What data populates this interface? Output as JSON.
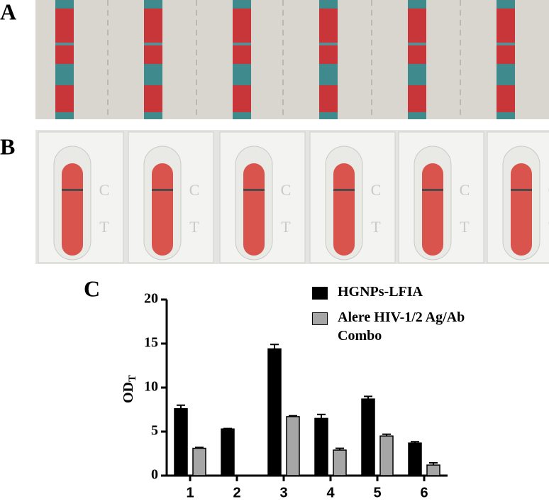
{
  "panel_labels": [
    "A",
    "B"
  ],
  "cassette_labels": [
    "C",
    "T"
  ],
  "chart_data": {
    "type": "bar",
    "panel_label": "C",
    "y_label": "OD",
    "y_label_sub": "T",
    "categories": [
      "1",
      "2",
      "3",
      "4",
      "5",
      "6"
    ],
    "series": [
      {
        "name": "HGNPs-LFIA",
        "color": "#000000",
        "values": [
          7.6,
          5.3,
          14.4,
          6.5,
          8.7,
          3.7
        ],
        "errors": [
          0.4,
          0.05,
          0.5,
          0.45,
          0.3,
          0.15
        ]
      },
      {
        "name": "Alere HIV-1/2 Ag/Ab Combo",
        "color": "#a6a6a6",
        "values": [
          3.1,
          0,
          6.7,
          2.9,
          4.5,
          1.2
        ],
        "errors": [
          0.1,
          0,
          0.1,
          0.2,
          0.2,
          0.25
        ]
      }
    ],
    "ylim": [
      0,
      20
    ],
    "yticks": [
      0,
      5,
      10,
      15,
      20
    ]
  }
}
